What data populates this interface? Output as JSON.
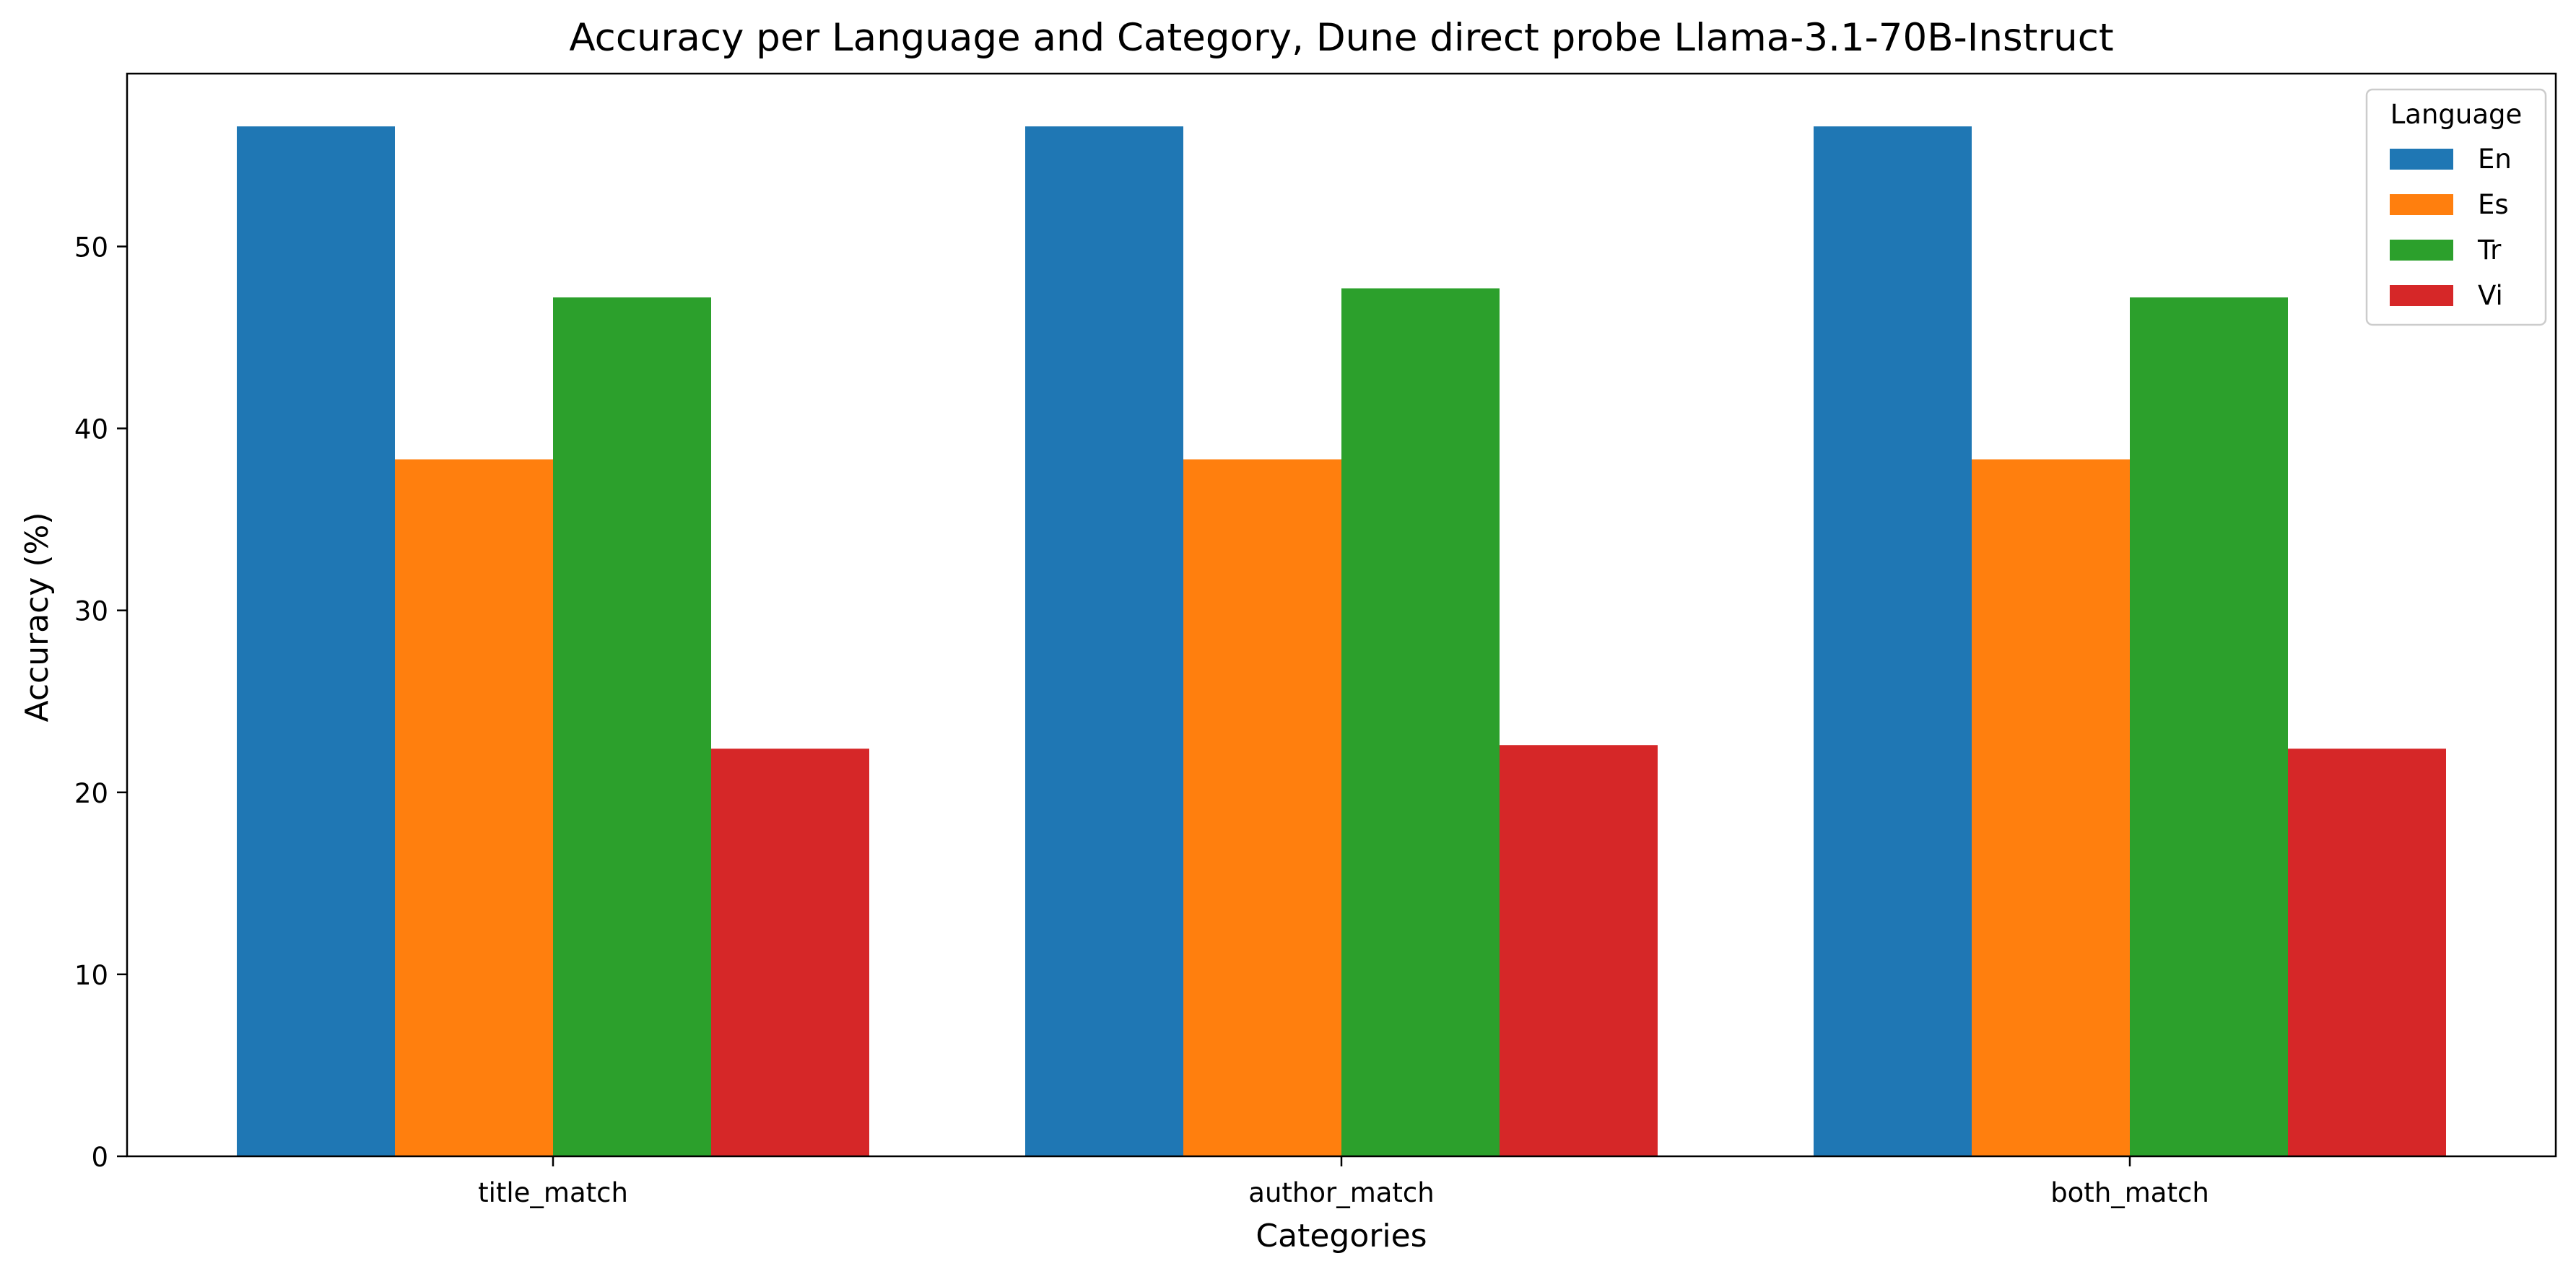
{
  "chart_data": {
    "type": "bar",
    "title": "Accuracy per Language and Category, Dune direct probe Llama-3.1-70B-Instruct",
    "xlabel": "Categories",
    "ylabel": "Accuracy (%)",
    "categories": [
      "title_match",
      "author_match",
      "both_match"
    ],
    "yticks": [
      0,
      10,
      20,
      30,
      40,
      50
    ],
    "ylim": [
      0,
      59.5
    ],
    "grid": false,
    "legend": {
      "title": "Language",
      "placement": "top-right"
    },
    "series": [
      {
        "name": "En",
        "color": "#1f77b4",
        "values": [
          56.6,
          56.6,
          56.6
        ]
      },
      {
        "name": "Es",
        "color": "#ff7f0e",
        "values": [
          38.3,
          38.3,
          38.3
        ]
      },
      {
        "name": "Tr",
        "color": "#2ca02c",
        "values": [
          47.2,
          47.7,
          47.2
        ]
      },
      {
        "name": "Vi",
        "color": "#d62728",
        "values": [
          22.4,
          22.6,
          22.4
        ]
      }
    ]
  }
}
